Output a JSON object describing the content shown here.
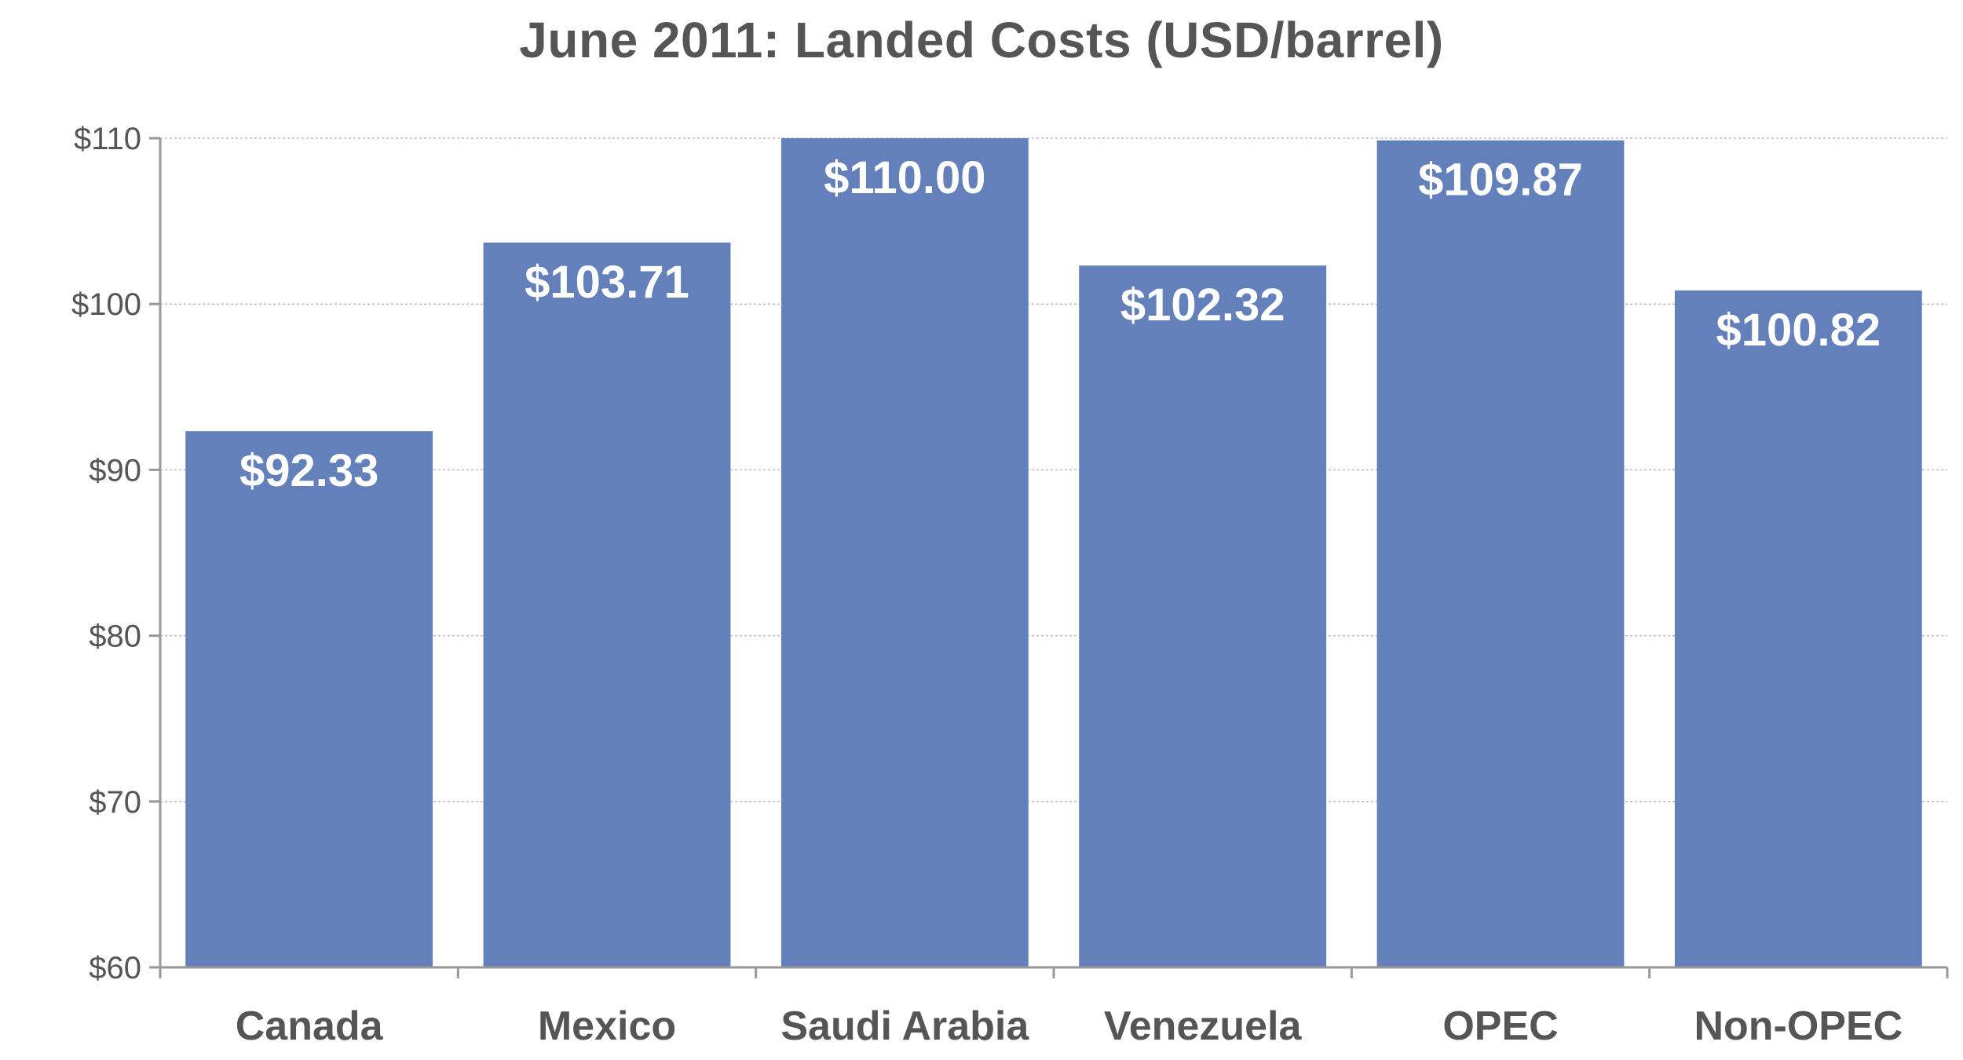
{
  "chart_data": {
    "type": "bar",
    "title": "June 2011: Landed Costs (USD/barrel)",
    "xlabel": "",
    "ylabel": "",
    "categories": [
      "Canada",
      "Mexico",
      "Saudi Arabia",
      "Venezuela",
      "OPEC",
      "Non-OPEC"
    ],
    "values": [
      92.33,
      103.71,
      110.0,
      102.32,
      109.87,
      100.82
    ],
    "data_labels": [
      "$92.33",
      "$103.71",
      "$110.00",
      "$102.32",
      "$109.87",
      "$100.82"
    ],
    "ylim": [
      60,
      110
    ],
    "y_ticks": [
      60,
      70,
      80,
      90,
      100,
      110
    ],
    "y_tick_labels": [
      "$60",
      "$70",
      "$80",
      "$90",
      "$100",
      "$110"
    ],
    "grid": true,
    "legend": "none",
    "bar_color": "#6380ba",
    "axis_color": "#999999",
    "grid_color": "#bbbbbb",
    "text_color": "#555555"
  }
}
